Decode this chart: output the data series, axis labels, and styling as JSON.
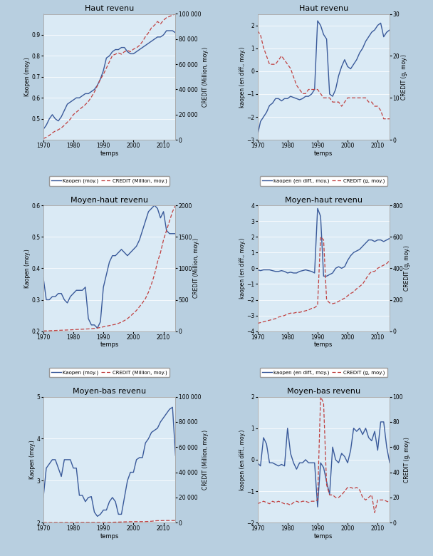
{
  "background_color": "#daeaf5",
  "figure_bg": "#b8cfe0",
  "line_color_kaopen": "#3a5a9a",
  "line_color_credit": "#c04040",
  "titles": [
    "Haut revenu",
    "Haut revenu",
    "Moyen-haut revenu",
    "Moyen-haut revenu",
    "Moyen-bas revenu",
    "Moyen-bas revenu"
  ],
  "xlabel": "temps",
  "ylabels_left": [
    "Kaopen (moy.)",
    "kaopen (en diff., moy.)",
    "Kaopen (moy.)",
    "kaopen (en diff., moy.)",
    "Kaopen (moy.)",
    "kaopen (en diff., moy.)"
  ],
  "ylabels_right": [
    "CREDIT (Million, moy.)",
    "CREDIT (g, moy.)",
    "CREDIT (Million, moy.)",
    "CREDIT (g, moy.)",
    "CREDIT (Million, moy.)",
    "CREDIT (g, moy.)"
  ],
  "legend_labels": [
    [
      "Kaopen (moy.)",
      "CREDIT (Million, moy.)"
    ],
    [
      "kaopen (en diff., moy.)",
      "CREDIT (g, moy.)"
    ],
    [
      "Kaopen (moy.)",
      "CREDIT (Million, moy.)"
    ],
    [
      "kaopen (en diff., moy.)",
      "CREDIT (g, moy.)"
    ],
    [
      "Kaopen (moy.)",
      "CREDIT (Million, moy.)"
    ],
    [
      "kaopen (en diff., moy.)",
      "CREDIT (g, moy.)"
    ]
  ],
  "years": [
    1970,
    1971,
    1972,
    1973,
    1974,
    1975,
    1976,
    1977,
    1978,
    1979,
    1980,
    1981,
    1982,
    1983,
    1984,
    1985,
    1986,
    1987,
    1988,
    1989,
    1990,
    1991,
    1992,
    1993,
    1994,
    1995,
    1996,
    1997,
    1998,
    1999,
    2000,
    2001,
    2002,
    2003,
    2004,
    2005,
    2006,
    2007,
    2008,
    2009,
    2010,
    2011,
    2012,
    2013,
    2014
  ],
  "p0_kaopen": [
    0.45,
    0.47,
    0.5,
    0.52,
    0.5,
    0.49,
    0.51,
    0.54,
    0.57,
    0.58,
    0.59,
    0.6,
    0.6,
    0.61,
    0.62,
    0.62,
    0.63,
    0.64,
    0.66,
    0.69,
    0.73,
    0.79,
    0.8,
    0.82,
    0.83,
    0.83,
    0.84,
    0.84,
    0.82,
    0.81,
    0.81,
    0.82,
    0.83,
    0.84,
    0.85,
    0.86,
    0.87,
    0.88,
    0.89,
    0.89,
    0.9,
    0.92,
    0.92,
    0.92,
    0.91
  ],
  "p0_credit": [
    1000,
    2000,
    3500,
    5500,
    7000,
    8000,
    9500,
    11500,
    14000,
    16500,
    20000,
    22000,
    24000,
    26000,
    28000,
    30500,
    34000,
    38000,
    43000,
    48000,
    52000,
    57000,
    62000,
    67000,
    68000,
    69000,
    68000,
    70000,
    71000,
    70000,
    72000,
    73000,
    75000,
    78000,
    82000,
    85000,
    89000,
    91000,
    94000,
    92000,
    95000,
    97000,
    98000,
    99000,
    100000
  ],
  "p0_ylim_l": [
    0.4,
    1.0
  ],
  "p0_ylim_r": [
    0,
    100000
  ],
  "p0_yticks_l": [
    0.5,
    0.6,
    0.7,
    0.8,
    0.9
  ],
  "p0_yticks_r": [
    0,
    20000,
    40000,
    60000,
    80000,
    100000
  ],
  "p1_kaopen": [
    -2.8,
    -2.2,
    -2.0,
    -1.8,
    -1.5,
    -1.4,
    -1.2,
    -1.2,
    -1.3,
    -1.2,
    -1.2,
    -1.1,
    -1.15,
    -1.2,
    -1.25,
    -1.2,
    -1.1,
    -1.1,
    -1.0,
    -0.8,
    2.2,
    2.0,
    1.6,
    1.4,
    -1.0,
    -1.1,
    -0.8,
    -0.2,
    0.2,
    0.5,
    0.2,
    0.1,
    0.3,
    0.5,
    0.8,
    1.0,
    1.3,
    1.5,
    1.7,
    1.8,
    2.0,
    2.1,
    1.5,
    1.7,
    1.8
  ],
  "p1_credit": [
    26,
    25,
    22,
    20,
    18,
    18,
    18,
    19,
    20,
    19,
    18,
    17,
    15,
    13,
    12,
    11,
    11,
    12,
    12,
    12,
    12,
    11,
    10,
    10,
    10,
    9,
    9,
    9,
    8,
    9,
    10,
    10,
    10,
    10,
    10,
    10,
    10,
    9,
    9,
    8,
    8,
    7,
    5,
    5,
    5
  ],
  "p1_ylim_l": [
    -3.0,
    2.5
  ],
  "p1_ylim_r": [
    0,
    30
  ],
  "p1_yticks_l": [
    -3,
    -2,
    -1,
    0,
    1,
    2
  ],
  "p1_yticks_r": [
    0,
    10,
    20,
    30
  ],
  "p2_kaopen": [
    0.37,
    0.3,
    0.3,
    0.31,
    0.31,
    0.32,
    0.32,
    0.3,
    0.29,
    0.31,
    0.32,
    0.33,
    0.33,
    0.33,
    0.34,
    0.24,
    0.22,
    0.22,
    0.21,
    0.23,
    0.34,
    0.38,
    0.42,
    0.44,
    0.44,
    0.45,
    0.46,
    0.45,
    0.44,
    0.45,
    0.46,
    0.47,
    0.49,
    0.52,
    0.55,
    0.58,
    0.59,
    0.6,
    0.59,
    0.56,
    0.58,
    0.52,
    0.51,
    0.51,
    0.51
  ],
  "p2_credit": [
    5,
    6,
    8,
    10,
    12,
    14,
    16,
    18,
    20,
    22,
    25,
    28,
    30,
    32,
    35,
    37,
    40,
    45,
    50,
    60,
    70,
    80,
    90,
    100,
    110,
    125,
    145,
    170,
    200,
    240,
    285,
    330,
    390,
    450,
    520,
    620,
    750,
    900,
    1100,
    1250,
    1450,
    1600,
    1750,
    1900,
    2000
  ],
  "p2_ylim_l": [
    0.2,
    0.6
  ],
  "p2_ylim_r": [
    0,
    2000
  ],
  "p2_yticks_l": [
    0.2,
    0.3,
    0.4,
    0.5,
    0.6
  ],
  "p2_yticks_r": [
    0,
    500,
    1000,
    1500,
    2000
  ],
  "p3_kaopen": [
    -0.1,
    -0.15,
    -0.1,
    -0.1,
    -0.1,
    -0.15,
    -0.2,
    -0.2,
    -0.15,
    -0.2,
    -0.3,
    -0.25,
    -0.3,
    -0.3,
    -0.2,
    -0.15,
    -0.1,
    -0.15,
    -0.2,
    -0.3,
    3.8,
    3.3,
    -0.5,
    -0.5,
    -0.4,
    -0.3,
    0.0,
    0.1,
    0.0,
    0.1,
    0.5,
    0.8,
    1.0,
    1.1,
    1.2,
    1.4,
    1.6,
    1.8,
    1.8,
    1.7,
    1.8,
    1.8,
    1.7,
    1.8,
    1.9
  ],
  "p3_credit": [
    50,
    55,
    60,
    65,
    70,
    75,
    80,
    90,
    95,
    100,
    110,
    115,
    115,
    120,
    120,
    125,
    130,
    135,
    145,
    150,
    165,
    600,
    580,
    200,
    180,
    175,
    180,
    190,
    200,
    210,
    225,
    240,
    250,
    270,
    285,
    300,
    330,
    360,
    380,
    380,
    400,
    410,
    420,
    430,
    450
  ],
  "p3_ylim_l": [
    -4.0,
    4.0
  ],
  "p3_ylim_r": [
    0,
    800
  ],
  "p3_yticks_l": [
    -4,
    -3,
    -2,
    -1,
    0,
    1,
    2,
    3,
    4
  ],
  "p3_yticks_r": [
    0,
    200,
    400,
    600,
    800
  ],
  "p4_kaopen": [
    2.6,
    3.3,
    3.4,
    3.5,
    3.5,
    3.3,
    3.1,
    3.5,
    3.5,
    3.5,
    3.3,
    3.3,
    2.65,
    2.65,
    2.5,
    2.6,
    2.62,
    2.25,
    2.15,
    2.2,
    2.3,
    2.3,
    2.5,
    2.6,
    2.5,
    2.2,
    2.2,
    2.6,
    3.0,
    3.2,
    3.2,
    3.5,
    3.55,
    3.55,
    3.9,
    4.0,
    4.15,
    4.2,
    4.25,
    4.4,
    4.5,
    4.6,
    4.7,
    4.75,
    3.6
  ],
  "p4_credit": [
    100,
    110,
    120,
    130,
    140,
    150,
    160,
    170,
    180,
    190,
    200,
    210,
    215,
    215,
    215,
    215,
    215,
    210,
    210,
    215,
    240,
    260,
    290,
    330,
    390,
    450,
    530,
    620,
    700,
    750,
    790,
    820,
    830,
    830,
    860,
    940,
    1100,
    1400,
    1600,
    1600,
    1650,
    1700,
    1700,
    1700,
    1750
  ],
  "p4_ylim_l": [
    2.0,
    5.0
  ],
  "p4_ylim_r": [
    0,
    100000
  ],
  "p4_yticks_l": [
    2,
    3,
    4,
    5
  ],
  "p4_yticks_r": [
    0,
    20000,
    40000,
    60000,
    80000,
    100000
  ],
  "p5_kaopen": [
    -0.1,
    -0.2,
    0.7,
    0.5,
    -0.1,
    -0.1,
    -0.15,
    -0.2,
    -0.15,
    -0.2,
    1.0,
    0.2,
    -0.1,
    -0.3,
    -0.1,
    -0.1,
    0.0,
    -0.1,
    -0.1,
    -0.1,
    -1.5,
    -0.1,
    -0.25,
    -0.7,
    -1.1,
    0.4,
    0.0,
    -0.1,
    0.2,
    0.1,
    -0.1,
    0.3,
    1.0,
    0.9,
    1.0,
    0.8,
    1.0,
    0.7,
    0.6,
    0.9,
    0.3,
    1.2,
    1.2,
    0.4,
    -0.1
  ],
  "p5_credit": [
    15,
    16,
    17,
    16,
    15,
    17,
    16,
    17,
    16,
    15,
    15,
    14,
    16,
    17,
    16,
    17,
    17,
    16,
    17,
    17,
    18,
    100,
    95,
    30,
    22,
    22,
    20,
    20,
    22,
    25,
    28,
    28,
    27,
    28,
    26,
    20,
    18,
    20,
    22,
    8,
    18,
    18,
    18,
    17,
    16
  ],
  "p5_ylim_l": [
    -2.0,
    2.0
  ],
  "p5_ylim_r": [
    0,
    100
  ],
  "p5_yticks_l": [
    -2,
    -1,
    0,
    1,
    2
  ],
  "p5_yticks_r": [
    0,
    20,
    40,
    60,
    80,
    100
  ]
}
